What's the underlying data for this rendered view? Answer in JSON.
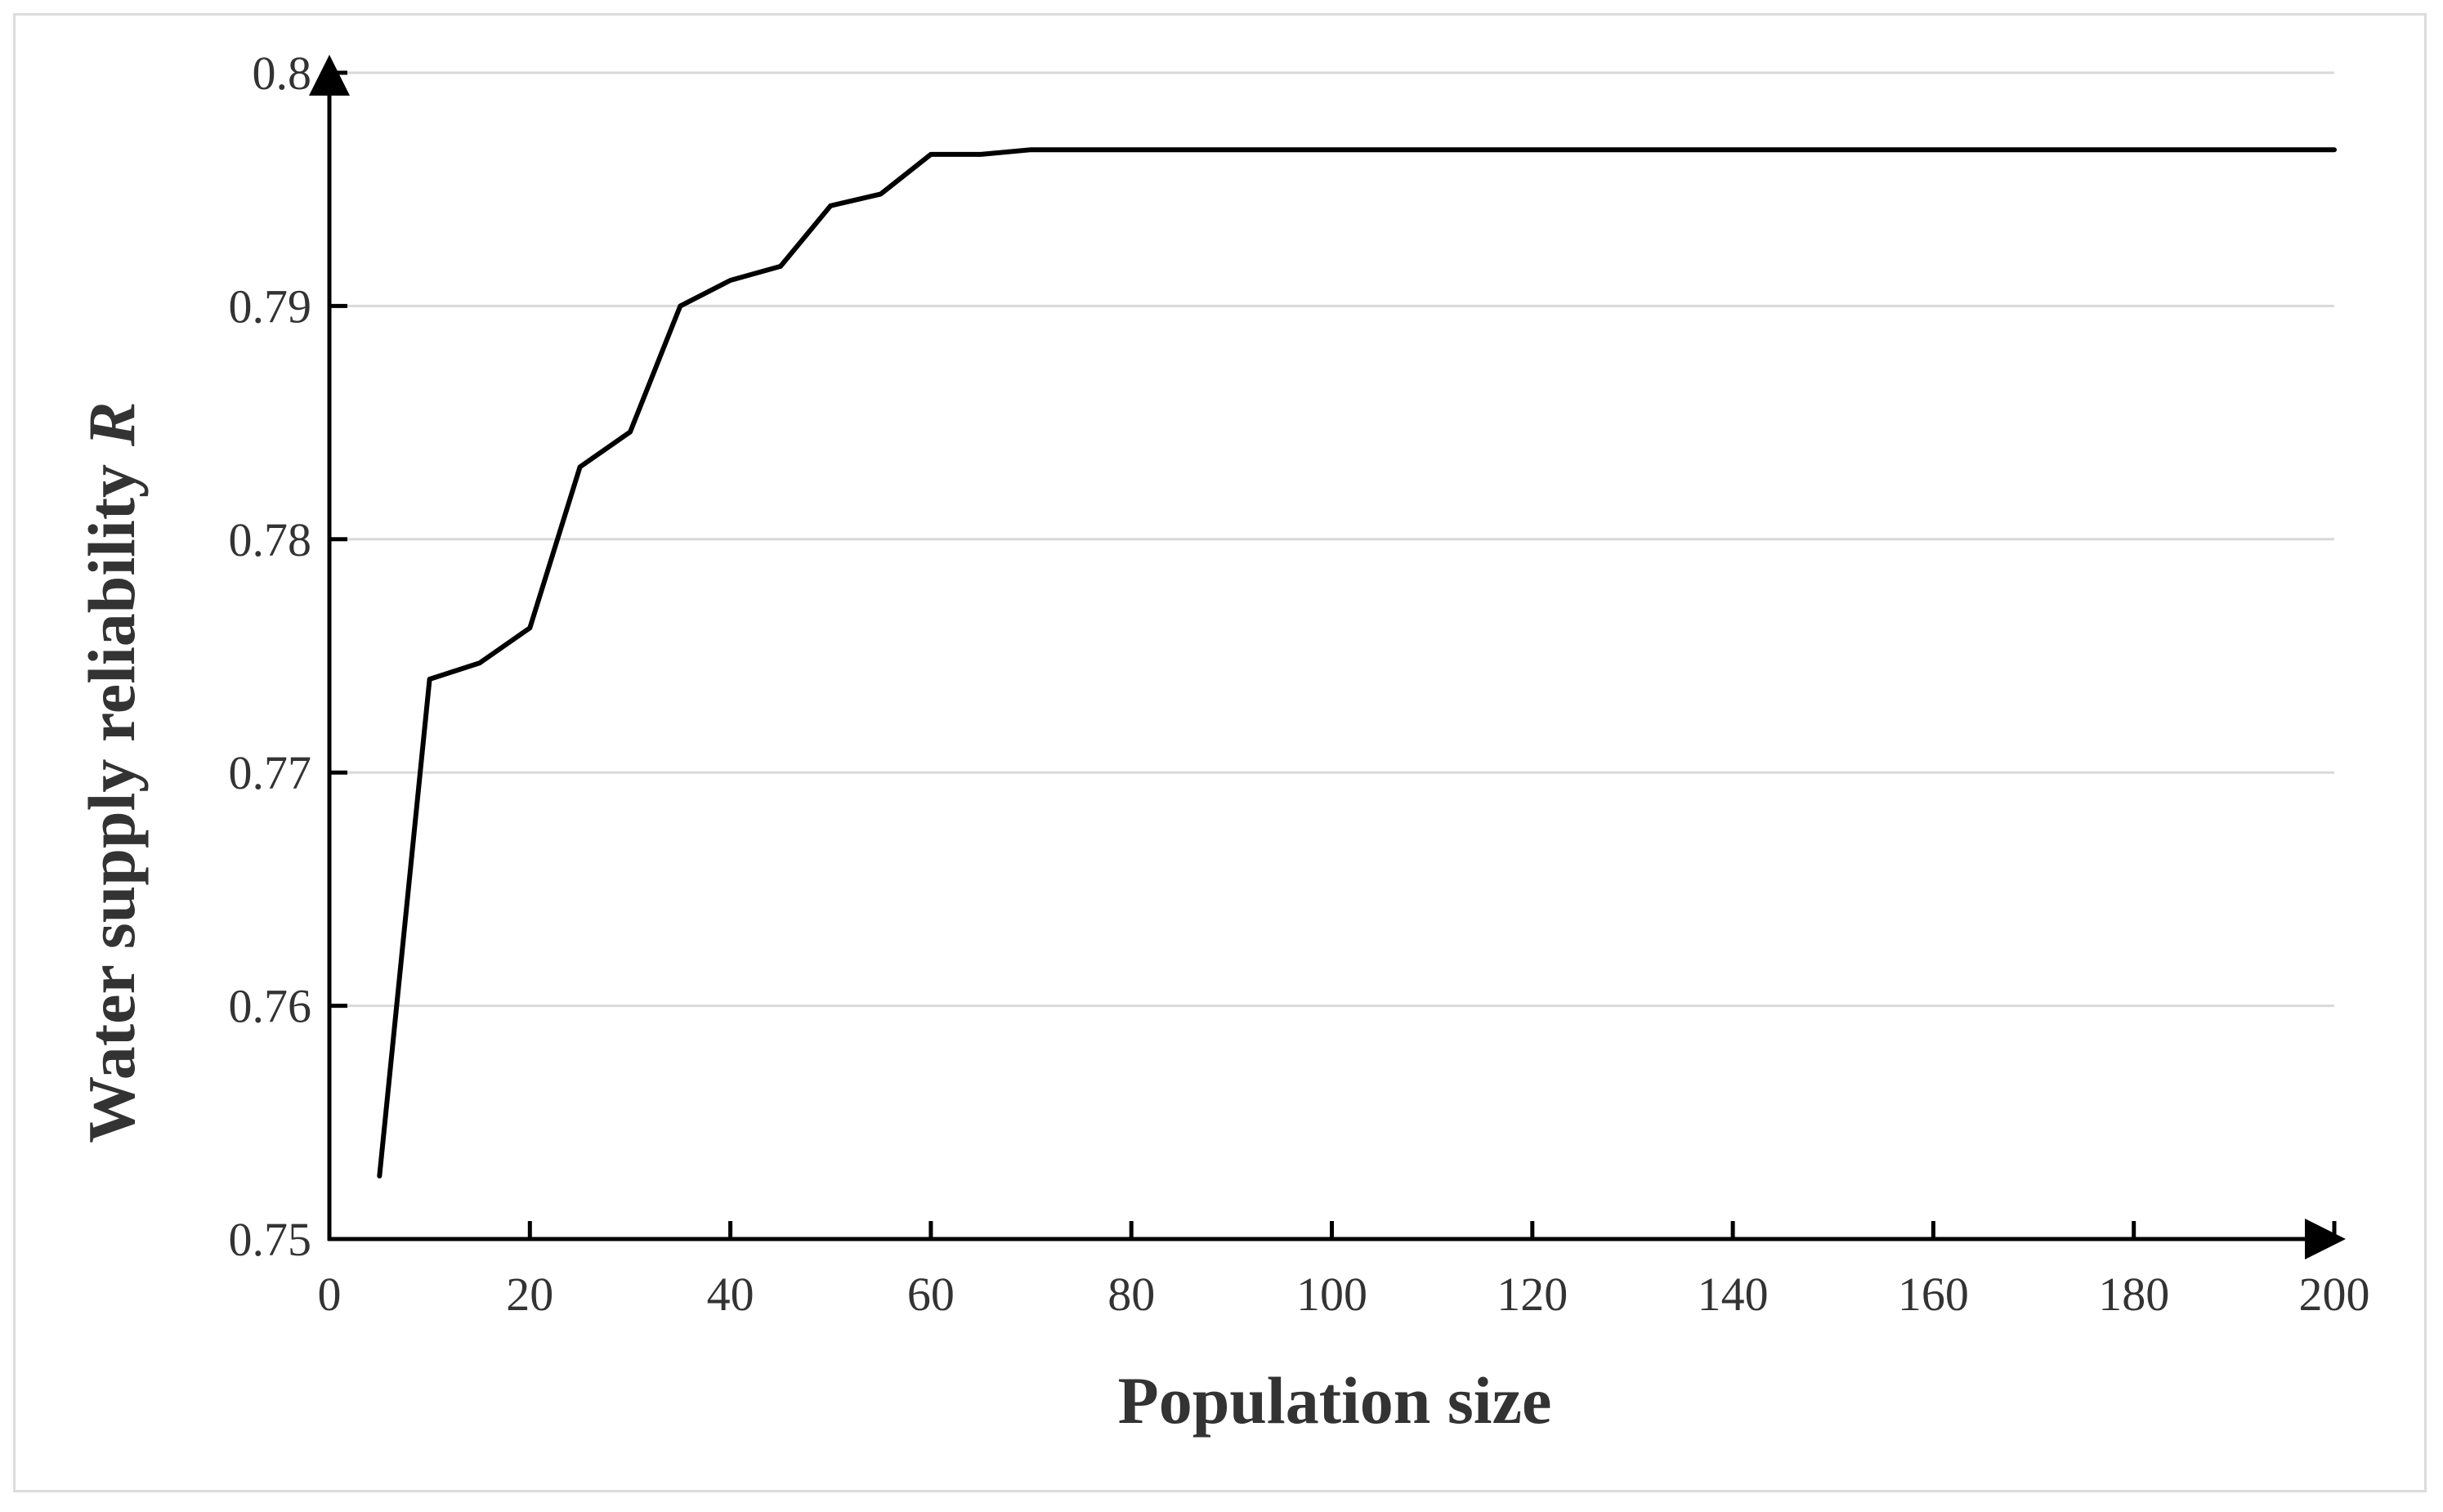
{
  "chart_data": {
    "type": "line",
    "xlabel": "Population size",
    "ylabel": "Water supply reliability",
    "ylabel_symbol": "R",
    "xlim": [
      0,
      200
    ],
    "ylim": [
      0.75,
      0.8
    ],
    "x_ticks": [
      "0",
      "20",
      "40",
      "60",
      "80",
      "100",
      "120",
      "140",
      "160",
      "180",
      "200"
    ],
    "y_ticks": [
      "0.75",
      "0.76",
      "0.77",
      "0.78",
      "0.79",
      "0.8"
    ],
    "grid": "horizontal",
    "line_color": "#000000",
    "series": [
      {
        "x": [
          5,
          10,
          15,
          20,
          25,
          30,
          35,
          40,
          45,
          50,
          55,
          60,
          65,
          70,
          75,
          80,
          90,
          100,
          120,
          140,
          160,
          180,
          200
        ],
        "values": [
          0.7527,
          0.774,
          0.7747,
          0.7762,
          0.7831,
          0.7846,
          0.79,
          0.7911,
          0.7917,
          0.7943,
          0.7948,
          0.7965,
          0.7965,
          0.7967,
          0.7967,
          0.7967,
          0.7967,
          0.7967,
          0.7967,
          0.7967,
          0.7967,
          0.7967,
          0.7967
        ]
      }
    ]
  }
}
